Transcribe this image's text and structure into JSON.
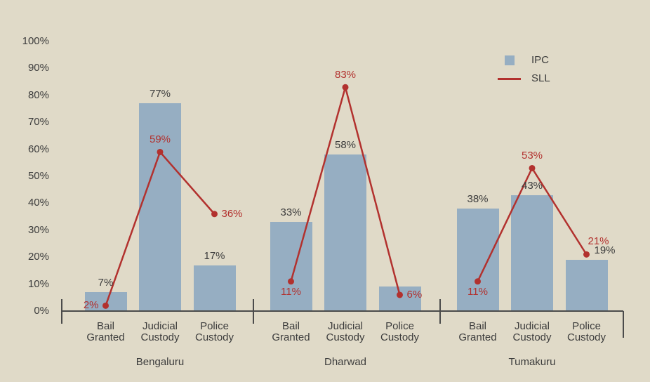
{
  "chart_data": {
    "type": "bar",
    "subtype": "grouped-bars-with-line-overlay",
    "title": "",
    "xlabel": "",
    "ylabel": "",
    "ylim": [
      0,
      100
    ],
    "y_tick_labels": [
      "0%",
      "10%",
      "20%",
      "30%",
      "40%",
      "50%",
      "60%",
      "70%",
      "80%",
      "90%",
      "100%"
    ],
    "grid": "off",
    "legend": {
      "position": "top-right",
      "entries": [
        {
          "label": "IPC",
          "marker": "square",
          "color": "#96aec2"
        },
        {
          "label": "SLL",
          "marker": "line",
          "color": "#b2312e"
        }
      ]
    },
    "categories_per_group": [
      "Bail\nGranted",
      "Judicial\nCustody",
      "Police\nCustody"
    ],
    "groups": [
      {
        "name": "Bengaluru",
        "ipc_values": [
          7,
          77,
          17
        ],
        "ipc_labels": [
          "7%",
          "77%",
          "17%"
        ],
        "sll_values": [
          2,
          59,
          36
        ],
        "sll_labels": [
          "2%",
          "59%",
          "36%"
        ],
        "sll_label_pos": [
          "left",
          "above",
          "right"
        ]
      },
      {
        "name": "Dharwad",
        "ipc_values": [
          33,
          58,
          9
        ],
        "ipc_labels": [
          "33%",
          "58%",
          ""
        ],
        "sll_values": [
          11,
          83,
          6
        ],
        "sll_labels": [
          "11%",
          "83%",
          "6%"
        ],
        "sll_label_pos": [
          "below",
          "above",
          "right"
        ]
      },
      {
        "name": "Tumakuru",
        "ipc_values": [
          38,
          43,
          19
        ],
        "ipc_labels": [
          "38%",
          "43%",
          "19%"
        ],
        "ipc_label_dx": [
          0,
          0,
          26
        ],
        "sll_values": [
          11,
          53,
          21
        ],
        "sll_labels": [
          "11%",
          "53%",
          "21%"
        ],
        "sll_label_pos": [
          "below",
          "above",
          "above-right"
        ]
      }
    ],
    "colors": {
      "background": "#e0dac8",
      "bar": "#96aec2",
      "line": "#b2312e",
      "text": "#3c3c3c",
      "axis": "#4b4b4b"
    }
  }
}
